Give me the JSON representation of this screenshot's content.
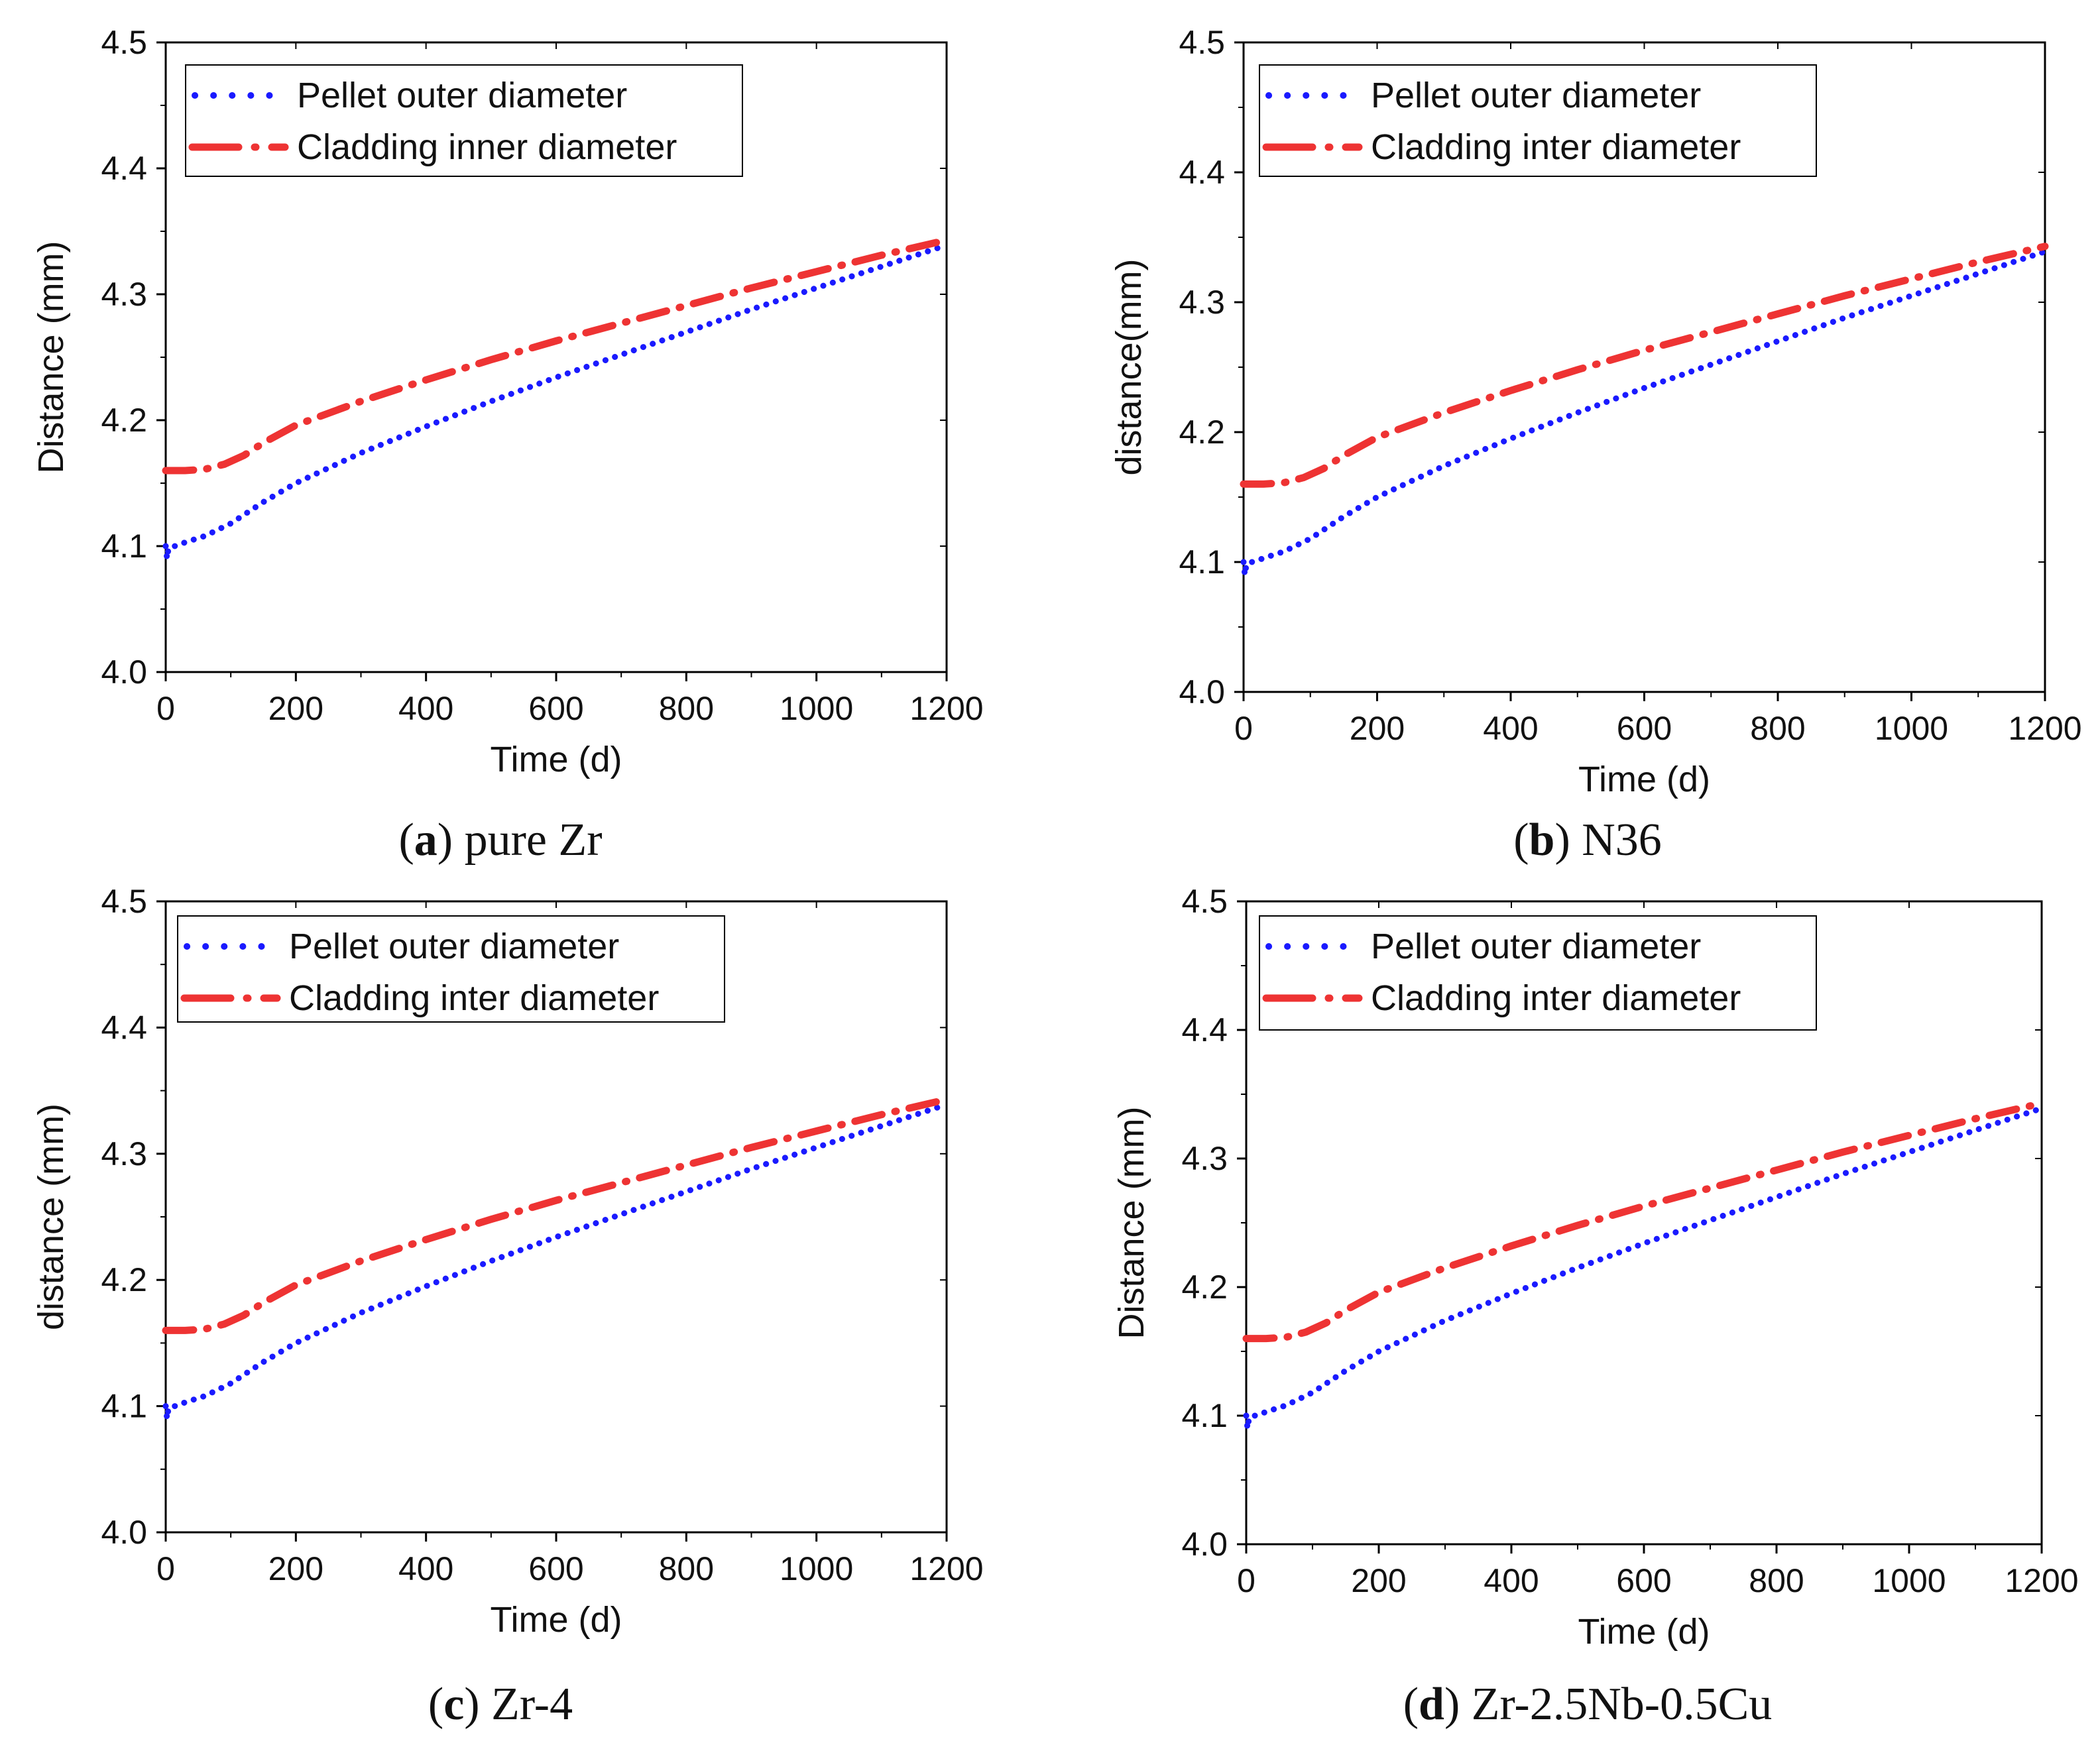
{
  "colors": {
    "pellet": "#1a1aff",
    "cladding": "#ee3333",
    "axis": "#000000"
  },
  "chart_data": [
    {
      "type": "line",
      "panel_letter": "a",
      "caption": "pure Zr",
      "xlabel": "Time (d)",
      "ylabel": "Distance (mm)",
      "xlim": [
        0,
        1200
      ],
      "ylim": [
        4.0,
        4.5
      ],
      "xticks": [
        "0",
        "200",
        "400",
        "600",
        "800",
        "1000",
        "1200"
      ],
      "yticks": [
        "4.0",
        "4.1",
        "4.2",
        "4.3",
        "4.4",
        "4.5"
      ],
      "legend": [
        "Pellet outer diameter",
        "Cladding inner diameter"
      ],
      "series": [
        {
          "name": "Pellet outer diameter",
          "style": "dotted",
          "color": "#1a1aff",
          "x": [
            0,
            2,
            4,
            8,
            15,
            30,
            60,
            100,
            150,
            200,
            300,
            400,
            500,
            600,
            700,
            800,
            900,
            1000,
            1100,
            1200
          ],
          "y": [
            4.1,
            4.09,
            4.097,
            4.1,
            4.1,
            4.103,
            4.108,
            4.118,
            4.135,
            4.15,
            4.174,
            4.195,
            4.215,
            4.234,
            4.252,
            4.27,
            4.288,
            4.305,
            4.322,
            4.339
          ]
        },
        {
          "name": "Cladding inner diameter",
          "style": "dashdot",
          "color": "#ee3333",
          "x": [
            0,
            30,
            60,
            90,
            120,
            150,
            200,
            300,
            400,
            500,
            600,
            700,
            800,
            900,
            1000,
            1100,
            1200
          ],
          "y": [
            4.16,
            4.16,
            4.161,
            4.165,
            4.172,
            4.182,
            4.196,
            4.215,
            4.232,
            4.248,
            4.263,
            4.277,
            4.291,
            4.305,
            4.318,
            4.331,
            4.343
          ]
        }
      ]
    },
    {
      "type": "line",
      "panel_letter": "b",
      "caption": "N36",
      "xlabel": "Time (d)",
      "ylabel": "distance(mm)",
      "xlim": [
        0,
        1200
      ],
      "ylim": [
        4.0,
        4.5
      ],
      "xticks": [
        "0",
        "200",
        "400",
        "600",
        "800",
        "1000",
        "1200"
      ],
      "yticks": [
        "4.0",
        "4.1",
        "4.2",
        "4.3",
        "4.4",
        "4.5"
      ],
      "legend": [
        "Pellet outer diameter",
        "Cladding inter diameter"
      ],
      "series": [
        {
          "name": "Pellet outer diameter",
          "style": "dotted",
          "color": "#1a1aff",
          "x": [
            0,
            2,
            4,
            8,
            15,
            30,
            60,
            100,
            150,
            200,
            300,
            400,
            500,
            600,
            700,
            800,
            900,
            1000,
            1100,
            1200
          ],
          "y": [
            4.1,
            4.09,
            4.097,
            4.1,
            4.1,
            4.103,
            4.108,
            4.118,
            4.135,
            4.15,
            4.174,
            4.195,
            4.215,
            4.234,
            4.252,
            4.27,
            4.288,
            4.305,
            4.322,
            4.339
          ]
        },
        {
          "name": "Cladding inter diameter",
          "style": "dashdot",
          "color": "#ee3333",
          "x": [
            0,
            30,
            60,
            90,
            120,
            150,
            200,
            300,
            400,
            500,
            600,
            700,
            800,
            900,
            1000,
            1100,
            1200
          ],
          "y": [
            4.16,
            4.16,
            4.161,
            4.165,
            4.172,
            4.182,
            4.196,
            4.215,
            4.232,
            4.248,
            4.263,
            4.277,
            4.291,
            4.305,
            4.318,
            4.331,
            4.343
          ]
        }
      ]
    },
    {
      "type": "line",
      "panel_letter": "c",
      "caption": "Zr-4",
      "xlabel": "Time (d)",
      "ylabel": "distance (mm)",
      "xlim": [
        0,
        1200
      ],
      "ylim": [
        4.0,
        4.5
      ],
      "xticks": [
        "0",
        "200",
        "400",
        "600",
        "800",
        "1000",
        "1200"
      ],
      "yticks": [
        "4.0",
        "4.1",
        "4.2",
        "4.3",
        "4.4",
        "4.5"
      ],
      "legend": [
        "Pellet outer diameter",
        "Cladding inter diameter"
      ],
      "series": [
        {
          "name": "Pellet outer diameter",
          "style": "dotted",
          "color": "#1a1aff",
          "x": [
            0,
            2,
            4,
            8,
            15,
            30,
            60,
            100,
            150,
            200,
            300,
            400,
            500,
            600,
            700,
            800,
            900,
            1000,
            1100,
            1200
          ],
          "y": [
            4.1,
            4.09,
            4.097,
            4.1,
            4.1,
            4.103,
            4.108,
            4.118,
            4.135,
            4.15,
            4.174,
            4.195,
            4.215,
            4.234,
            4.252,
            4.27,
            4.288,
            4.305,
            4.322,
            4.339
          ]
        },
        {
          "name": "Cladding inter diameter",
          "style": "dashdot",
          "color": "#ee3333",
          "x": [
            0,
            30,
            60,
            90,
            120,
            150,
            200,
            300,
            400,
            500,
            600,
            700,
            800,
            900,
            1000,
            1100,
            1200
          ],
          "y": [
            4.16,
            4.16,
            4.161,
            4.165,
            4.172,
            4.182,
            4.196,
            4.215,
            4.232,
            4.248,
            4.263,
            4.277,
            4.291,
            4.305,
            4.318,
            4.331,
            4.343
          ]
        }
      ]
    },
    {
      "type": "line",
      "panel_letter": "d",
      "caption": "Zr-2.5Nb-0.5Cu",
      "xlabel": "Time (d)",
      "ylabel": "Distance (mm)",
      "xlim": [
        0,
        1200
      ],
      "ylim": [
        4.0,
        4.5
      ],
      "xticks": [
        "0",
        "200",
        "400",
        "600",
        "800",
        "1000",
        "1200"
      ],
      "yticks": [
        "4.0",
        "4.1",
        "4.2",
        "4.3",
        "4.4",
        "4.5"
      ],
      "legend": [
        "Pellet outer diameter",
        "Cladding inter diameter"
      ],
      "series": [
        {
          "name": "Pellet outer diameter",
          "style": "dotted",
          "color": "#1a1aff",
          "x": [
            0,
            2,
            4,
            8,
            15,
            30,
            60,
            100,
            150,
            200,
            300,
            400,
            500,
            600,
            700,
            800,
            900,
            1000,
            1100,
            1200
          ],
          "y": [
            4.1,
            4.09,
            4.097,
            4.1,
            4.1,
            4.103,
            4.108,
            4.118,
            4.135,
            4.15,
            4.174,
            4.195,
            4.215,
            4.234,
            4.252,
            4.27,
            4.288,
            4.305,
            4.322,
            4.339
          ]
        },
        {
          "name": "Cladding inter diameter",
          "style": "dashdot",
          "color": "#ee3333",
          "x": [
            0,
            30,
            60,
            90,
            120,
            150,
            200,
            300,
            400,
            500,
            600,
            700,
            800,
            900,
            1000,
            1100,
            1200
          ],
          "y": [
            4.16,
            4.16,
            4.161,
            4.165,
            4.172,
            4.182,
            4.196,
            4.215,
            4.232,
            4.248,
            4.263,
            4.277,
            4.291,
            4.305,
            4.318,
            4.331,
            4.343
          ]
        }
      ]
    }
  ]
}
